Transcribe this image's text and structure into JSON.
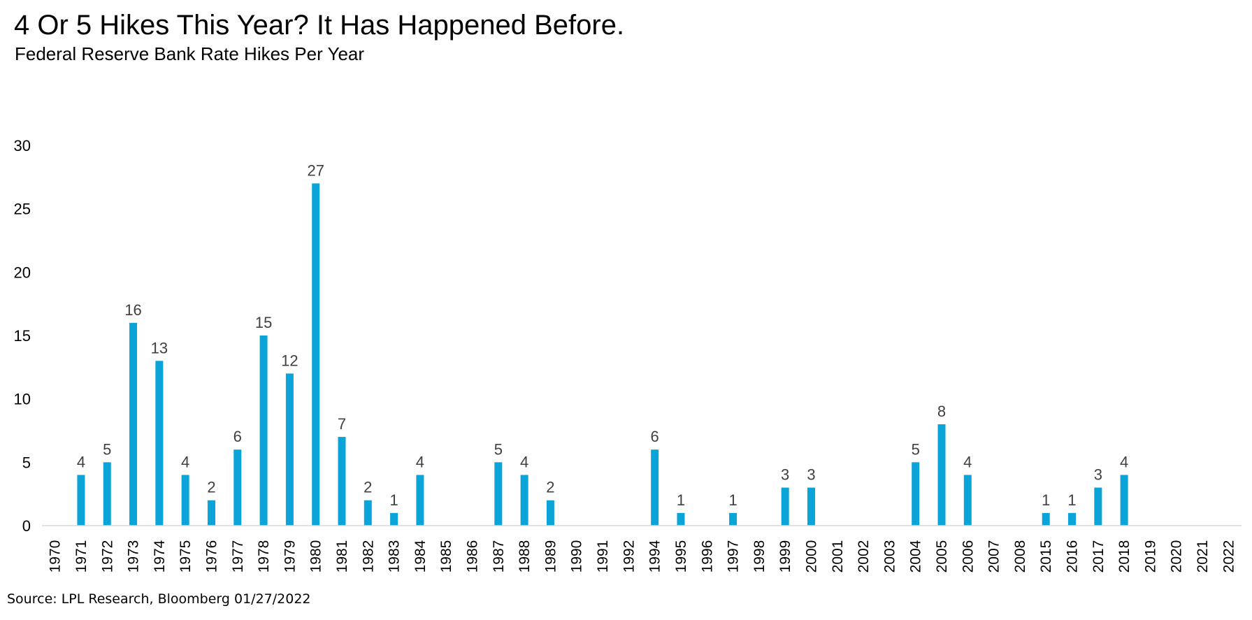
{
  "title": "4 Or 5 Hikes This Year? It Has Happened Before.",
  "subtitle": "Federal Reserve Bank Rate Hikes Per Year",
  "source": "Source: LPL Research, Bloomberg 01/27/2022",
  "chart_data": {
    "type": "bar",
    "title": "4 Or 5 Hikes This Year? It Has Happened Before.",
    "subtitle": "Federal Reserve Bank Rate Hikes Per Year",
    "xlabel": "",
    "ylabel": "",
    "ylim": [
      0,
      30
    ],
    "yticks": [
      0,
      5,
      10,
      15,
      20,
      25,
      30
    ],
    "grid": false,
    "legend": "none",
    "bar_color": "#0AA4D8",
    "categories": [
      "1970",
      "1971",
      "1972",
      "1973",
      "1974",
      "1975",
      "1976",
      "1977",
      "1978",
      "1979",
      "1980",
      "1981",
      "1982",
      "1983",
      "1984",
      "1985",
      "1986",
      "1987",
      "1988",
      "1989",
      "1990",
      "1991",
      "1992",
      "1994",
      "1995",
      "1996",
      "1997",
      "1998",
      "1999",
      "2000",
      "2001",
      "2002",
      "2003",
      "2004",
      "2005",
      "2006",
      "2007",
      "2008",
      "2015",
      "2016",
      "2017",
      "2018",
      "2019",
      "2020",
      "2021",
      "2022"
    ],
    "values": [
      0,
      4,
      5,
      16,
      13,
      4,
      2,
      6,
      15,
      12,
      27,
      7,
      2,
      1,
      4,
      0,
      0,
      5,
      4,
      2,
      0,
      0,
      0,
      6,
      1,
      0,
      1,
      0,
      3,
      3,
      0,
      0,
      0,
      5,
      8,
      4,
      0,
      0,
      1,
      1,
      3,
      4,
      0,
      0,
      0,
      0
    ],
    "data_labels_shown_for_nonzero": true
  }
}
